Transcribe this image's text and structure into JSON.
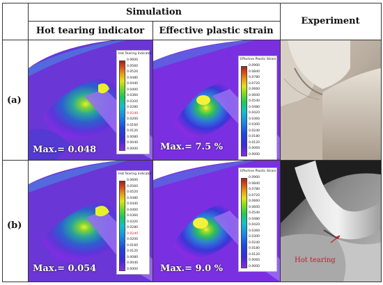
{
  "header": {
    "simulation": "Simulation",
    "experiment": "Experiment",
    "col_hot_tearing": "Hot tearing indicator",
    "col_plastic_strain": "Effective plastic strain"
  },
  "rows": {
    "a": "(a)",
    "b": "(b)"
  },
  "panels": {
    "a_hot": {
      "max_label": "Max.= 0.048"
    },
    "a_strain": {
      "max_label": "Max.= 7.5 %"
    },
    "b_hot": {
      "max_label": "Max.= 0.054"
    },
    "b_strain": {
      "max_label": "Max.= 9.0 %"
    }
  },
  "legend_hot": {
    "title": "Hot Tearing Indicator",
    "ticks": [
      "0.0600",
      "0.0560",
      "0.0520",
      "0.0480",
      "0.0440",
      "0.0400",
      "0.0360",
      "0.0320",
      "0.0280",
      "0.0240",
      "0.0200",
      "0.0160",
      "0.0120",
      "0.0080",
      "0.0040",
      "0.0000"
    ]
  },
  "legend_strain": {
    "title": "Effective Plastic Strain",
    "ticks": [
      "0.0900",
      "0.0840",
      "0.0780",
      "0.0720",
      "0.0660",
      "0.0600",
      "0.0540",
      "0.0480",
      "0.0420",
      "0.0360",
      "0.0300",
      "0.0240",
      "0.0180",
      "0.0120",
      "0.0060",
      "0.0000"
    ]
  },
  "experiment_b_annotation": "Hot tearing",
  "colors": {
    "grid_line": "#333333",
    "highlight_tick": "#dd1111",
    "annotation": "#c0202a"
  }
}
